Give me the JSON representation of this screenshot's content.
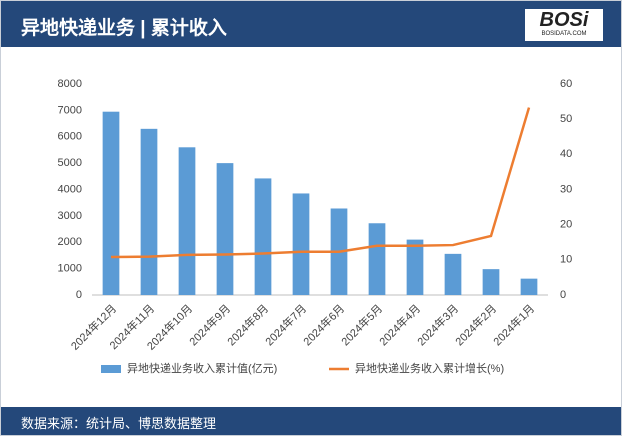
{
  "header": {
    "title": "异地快递业务 | 累计收入"
  },
  "logo": {
    "text": "BOSi",
    "url": "BOSIDATA.COM"
  },
  "chart_data": {
    "type": "combo",
    "categories": [
      "2024年12月",
      "2024年11月",
      "2024年10月",
      "2024年9月",
      "2024年8月",
      "2024年7月",
      "2024年6月",
      "2024年5月",
      "2024年4月",
      "2024年3月",
      "2024年2月",
      "2024年1月"
    ],
    "series": [
      {
        "name": "异地快递业务收入累计值(亿元)",
        "type": "bar",
        "color": "#5b9bd5",
        "values": [
          6950,
          6300,
          5600,
          5000,
          4420,
          3850,
          3280,
          2720,
          2100,
          1560,
          980,
          620
        ]
      },
      {
        "name": "异地快递业务收入累计增长(%)",
        "type": "line",
        "axis": "y2",
        "color": "#ed7d31",
        "values": [
          10.8,
          10.9,
          11.4,
          11.5,
          11.8,
          12.3,
          12.3,
          14.0,
          14.0,
          14.2,
          16.8,
          53.3
        ]
      }
    ],
    "ylim": [
      0,
      8000
    ],
    "yticks": [
      0,
      1000,
      2000,
      3000,
      4000,
      5000,
      6000,
      7000,
      8000
    ],
    "y2lim": [
      0,
      60
    ],
    "y2ticks": [
      0,
      10,
      20,
      30,
      40,
      50,
      60
    ],
    "legend": "bottom"
  },
  "footer": {
    "source": "数据来源：统计局、博思数据整理"
  }
}
